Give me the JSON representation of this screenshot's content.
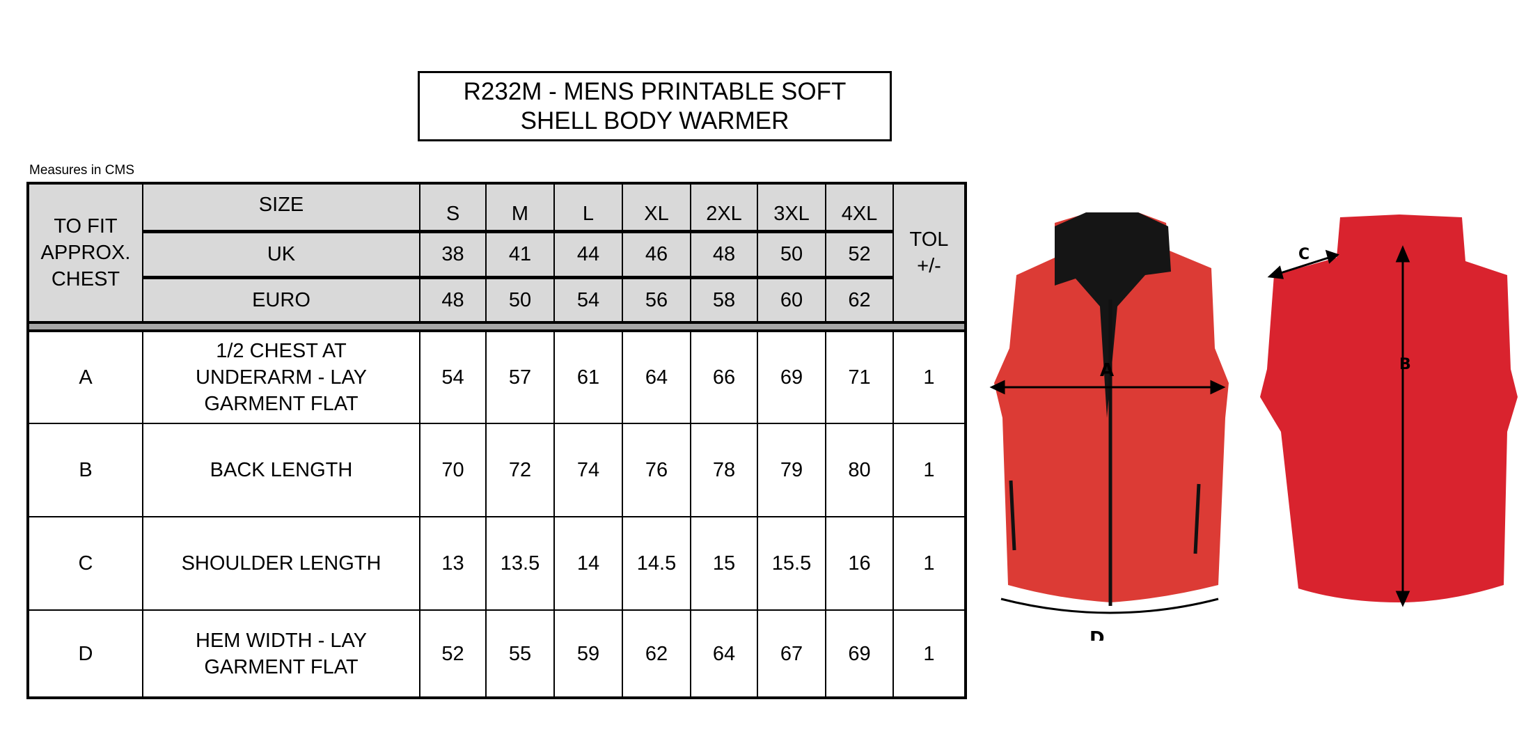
{
  "title": {
    "line1": "R232M - MENS PRINTABLE SOFT",
    "line2": "SHELL BODY WARMER"
  },
  "measures_note": "Measures in CMS",
  "header": {
    "to_fit": [
      "TO FIT",
      "APPROX.",
      "CHEST"
    ],
    "size_label": "SIZE",
    "uk_label": "UK",
    "euro_label": "EURO",
    "tol": [
      "TOL",
      "+/-"
    ],
    "sizes": [
      "S",
      "M",
      "L",
      "XL",
      "2XL",
      "3XL",
      "4XL"
    ],
    "uk": [
      "38",
      "41",
      "44",
      "46",
      "48",
      "50",
      "52"
    ],
    "euro": [
      "48",
      "50",
      "54",
      "56",
      "58",
      "60",
      "62"
    ]
  },
  "rows": [
    {
      "code": "A",
      "desc": [
        "1/2 CHEST AT",
        "UNDERARM - LAY",
        "GARMENT FLAT"
      ],
      "values": [
        "54",
        "57",
        "61",
        "64",
        "66",
        "69",
        "71"
      ],
      "tol": "1"
    },
    {
      "code": "B",
      "desc": [
        "BACK LENGTH"
      ],
      "values": [
        "70",
        "72",
        "74",
        "76",
        "78",
        "79",
        "80"
      ],
      "tol": "1"
    },
    {
      "code": "C",
      "desc": [
        "SHOULDER LENGTH"
      ],
      "values": [
        "13",
        "13.5",
        "14",
        "14.5",
        "15",
        "15.5",
        "16"
      ],
      "tol": "1"
    },
    {
      "code": "D",
      "desc": [
        "HEM WIDTH - LAY",
        "GARMENT FLAT"
      ],
      "values": [
        "52",
        "55",
        "59",
        "62",
        "64",
        "67",
        "69"
      ],
      "tol": "1"
    }
  ],
  "diagram_labels": {
    "a": "A",
    "b": "B",
    "c": "C",
    "d": "D"
  },
  "colors": {
    "header_bg": "#d9d9d9",
    "band": "#a6a6a6",
    "vest_front": "#dc3b35",
    "vest_back": "#d9232e",
    "collar": "#151515"
  }
}
